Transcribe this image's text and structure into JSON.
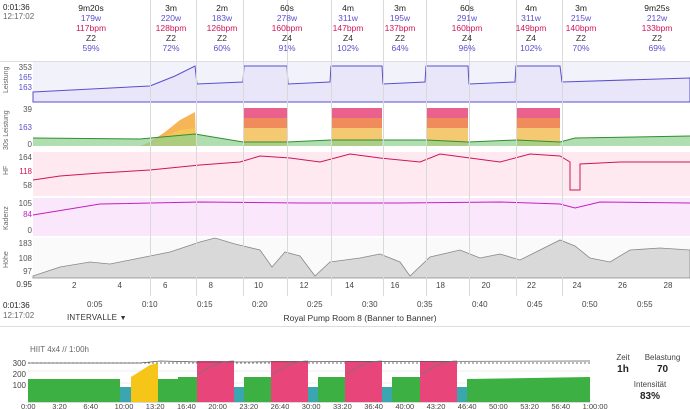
{
  "top_time": {
    "elapsed": "0:01:36",
    "clock": "12:17:02"
  },
  "laps": [
    {
      "duration": "9m20s",
      "watts": "179w",
      "bpm": "117bpm",
      "zone": "Z2",
      "pct": "59%"
    },
    {
      "duration": "3m",
      "watts": "220w",
      "bpm": "128bpm",
      "zone": "Z2",
      "pct": "72%"
    },
    {
      "duration": "2m",
      "watts": "183w",
      "bpm": "126bpm",
      "zone": "Z2",
      "pct": "60%"
    },
    {
      "duration": "60s",
      "watts": "278w",
      "bpm": "160bpm",
      "zone": "Z4",
      "pct": "91%"
    },
    {
      "duration": "4m",
      "watts": "311w",
      "bpm": "147bpm",
      "zone": "Z4",
      "pct": "102%"
    },
    {
      "duration": "3m",
      "watts": "195w",
      "bpm": "137bpm",
      "zone": "Z2",
      "pct": "64%"
    },
    {
      "duration": "60s",
      "watts": "291w",
      "bpm": "160bpm",
      "zone": "Z4",
      "pct": "96%"
    },
    {
      "duration": "4m",
      "watts": "311w",
      "bpm": "149bpm",
      "zone": "Z4",
      "pct": "102%"
    },
    {
      "duration": "3m",
      "watts": "215w",
      "bpm": "140bpm",
      "zone": "Z2",
      "pct": "70%"
    },
    {
      "duration": "9m25s",
      "watts": "212w",
      "bpm": "133bpm",
      "zone": "Z2",
      "pct": "69%"
    }
  ],
  "panels": {
    "power": {
      "label": "Leistung",
      "ticks": [
        "353",
        "165",
        "163"
      ]
    },
    "power30": {
      "label": "30s Leistung",
      "ticks": [
        "39",
        "163",
        "0"
      ]
    },
    "hr": {
      "label": "HF",
      "ticks": [
        "164",
        "118",
        "58"
      ]
    },
    "cadence": {
      "label": "Kadenz",
      "ticks": [
        "105",
        "84",
        "0"
      ]
    },
    "altitude": {
      "label": "Höhe",
      "ticks": [
        "183",
        "108",
        "97",
        "0.95"
      ]
    }
  },
  "distance_ticks": [
    "2",
    "4",
    "6",
    "8",
    "10",
    "12",
    "14",
    "16",
    "18",
    "20",
    "22",
    "24",
    "26",
    "28"
  ],
  "time_ticks": [
    "0:05",
    "0:10",
    "0:15",
    "0:20",
    "0:25",
    "0:30",
    "0:35",
    "0:40",
    "0:45",
    "0:50",
    "0:55"
  ],
  "bottom_time": {
    "elapsed": "0:01:36",
    "clock": "12:17:02"
  },
  "route_name": "Royal Pump Room 8 (Banner to Banner)",
  "intervals_label": "INTERVALLE",
  "workout": {
    "title": "HIIT 4x4 // 1:00h",
    "y_ticks": [
      "300",
      "200",
      "100"
    ],
    "x_ticks": [
      "0:00",
      "3:20",
      "6:40",
      "10:00",
      "13:20",
      "16:40",
      "20:00",
      "23:20",
      "26:40",
      "30:00",
      "33:20",
      "36:40",
      "40:00",
      "43:20",
      "46:40",
      "50:00",
      "53:20",
      "56:40",
      "1:00:00"
    ]
  },
  "stats": {
    "zeit_label": "Zeit",
    "zeit_value": "1h",
    "belastung_label": "Belastung",
    "belastung_value": "70",
    "intensitat_label": "Intensität",
    "intensitat_value": "83%"
  },
  "colors": {
    "power": "#5a4fcf",
    "hr": "#d0155a",
    "cadence": "#c020c0",
    "z2": "#3cb043",
    "z4": "#e8457a",
    "yellow": "#f5c518",
    "teal": "#3aa7b0"
  }
}
